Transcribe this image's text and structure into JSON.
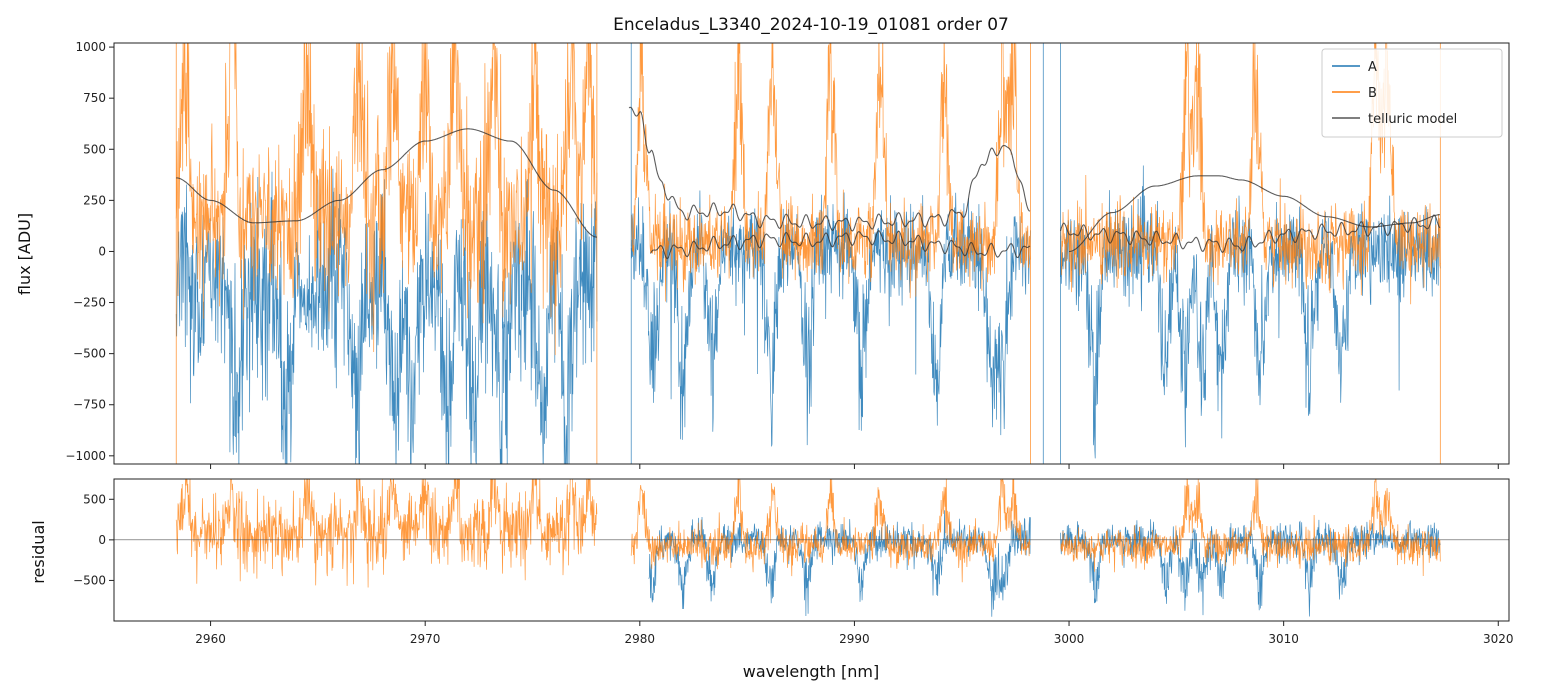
{
  "chart_data": [
    {
      "type": "line",
      "panel": "top",
      "title": "Enceladus_L3340_2024-10-19_01081  order 07",
      "xlabel": "",
      "ylabel": "flux [ADU]",
      "xlim": [
        2955.5,
        3020.5
      ],
      "ylim": [
        -1040,
        1020
      ],
      "yticks": [
        -1000,
        -750,
        -500,
        -250,
        0,
        250,
        500,
        750,
        1000
      ],
      "ytick_labels": [
        "−1000",
        "−750",
        "−500",
        "−250",
        "0",
        "250",
        "500",
        "750",
        "1000"
      ],
      "xticks": [
        2960,
        2970,
        2980,
        2990,
        3000,
        3010,
        3020
      ],
      "gaps": [
        [
          2978.0,
          2979.5
        ],
        [
          2998.2,
          2999.6
        ]
      ],
      "legend": {
        "position": "top-right",
        "entries": [
          {
            "label": "A",
            "color": "#1f77b4"
          },
          {
            "label": "B",
            "color": "#ff7f0e"
          },
          {
            "label": "telluric model",
            "color": "#333333"
          }
        ]
      },
      "series": [
        {
          "name": "A",
          "color": "#1f77b4",
          "description": "noisy spectrum with deep absorption dips"
        },
        {
          "name": "B",
          "color": "#ff7f0e",
          "description": "noisy spectrum, mostly positive spikes"
        },
        {
          "name": "telluric model",
          "color": "#333333",
          "curves": [
            {
              "x": [
                2958.4,
                2960,
                2962,
                2964,
                2966,
                2968,
                2970,
                2972,
                2974,
                2976,
                2978
              ],
              "y": [
                360,
                250,
                140,
                150,
                250,
                400,
                540,
                600,
                540,
                300,
                70
              ]
            },
            {
              "x": [
                2979.5,
                2980,
                2980.5,
                2981,
                2982,
                2984,
                2986,
                2988,
                2990,
                2992,
                2994,
                2995,
                2996,
                2997,
                2997.5,
                2998.2
              ],
              "y": [
                720,
                650,
                500,
                320,
                190,
                200,
                150,
                140,
                140,
                150,
                160,
                190,
                440,
                520,
                420,
                180
              ]
            },
            {
              "x": [
                2980.5,
                2982,
                2984,
                2986,
                2988,
                2990,
                2992,
                2994,
                2996,
                2998.2
              ],
              "y": [
                0,
                10,
                40,
                60,
                50,
                70,
                60,
                30,
                0,
                10
              ]
            },
            {
              "x": [
                2999.6,
                3002,
                3004,
                3006,
                3008,
                3010,
                3012,
                3014,
                3016,
                3017.3
              ],
              "y": [
                100,
                80,
                60,
                40,
                30,
                80,
                100,
                110,
                130,
                140
              ]
            },
            {
              "x": [
                3000,
                3002,
                3004,
                3006,
                3007,
                3008,
                3010,
                3012,
                3014,
                3016,
                3017.3
              ],
              "y": [
                0,
                190,
                320,
                370,
                370,
                350,
                270,
                170,
                120,
                140,
                180
              ]
            }
          ]
        }
      ]
    },
    {
      "type": "line",
      "panel": "bottom",
      "xlabel": "wavelength [nm]",
      "ylabel": "residual",
      "xlim": [
        2955.5,
        3020.5
      ],
      "ylim": [
        -1000,
        750
      ],
      "yticks": [
        -500,
        0,
        500
      ],
      "ytick_labels": [
        "−500",
        "0",
        "500"
      ],
      "xticks": [
        2960,
        2970,
        2980,
        2990,
        3000,
        3010,
        3020
      ],
      "xtick_labels": [
        "2960",
        "2970",
        "2980",
        "2990",
        "3000",
        "3010",
        "3020"
      ],
      "zero_line": true,
      "series": [
        {
          "name": "A",
          "color": "#1f77b4"
        },
        {
          "name": "B",
          "color": "#ff7f0e"
        }
      ]
    }
  ]
}
